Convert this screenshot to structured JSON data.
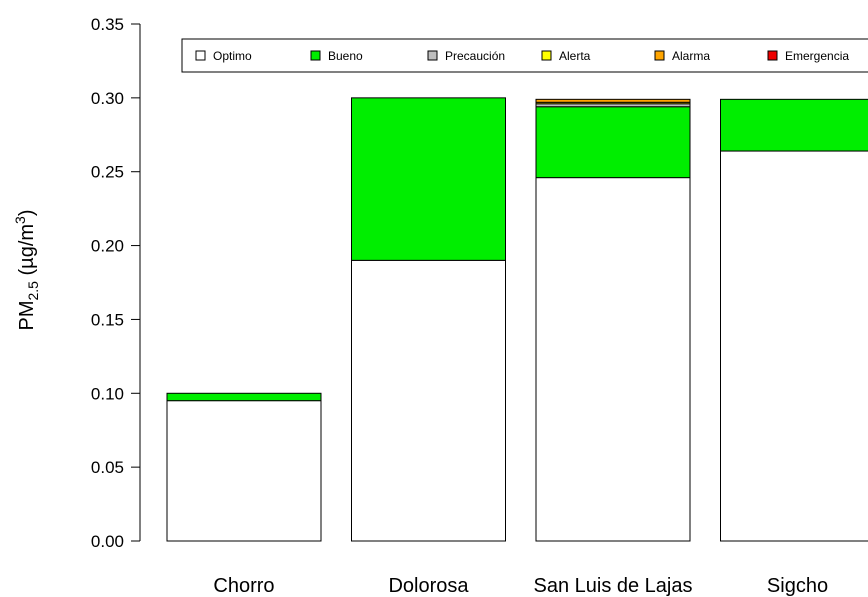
{
  "chart_data": {
    "type": "bar",
    "stacked": true,
    "ylabel": {
      "main": "PM",
      "sub": "2.5",
      "units_open": " (µg/m",
      "units_sup": "3",
      "units_close": ")"
    },
    "ylim": [
      0,
      0.35
    ],
    "yticks": [
      "0.00",
      "0.05",
      "0.10",
      "0.15",
      "0.20",
      "0.25",
      "0.30",
      "0.35"
    ],
    "grid": false,
    "legend_position": "top",
    "categories": [
      "Chorro",
      "Dolorosa",
      "San Luis de Lajas",
      "Sigcho"
    ],
    "series": [
      {
        "name": "Optimo",
        "color": "#ffffff",
        "values": [
          0.095,
          0.19,
          0.246,
          0.264
        ]
      },
      {
        "name": "Bueno",
        "color": "#00ee00",
        "values": [
          0.005,
          0.11,
          0.048,
          0.035
        ]
      },
      {
        "name": "Precaución",
        "color": "#bebebe",
        "values": [
          0.0,
          0.0,
          0.002,
          0.0
        ]
      },
      {
        "name": "Alerta",
        "color": "#ffff00",
        "values": [
          0.0,
          0.0,
          0.001,
          0.0
        ]
      },
      {
        "name": "Alarma",
        "color": "#ffa500",
        "values": [
          0.0,
          0.0,
          0.002,
          0.0
        ]
      },
      {
        "name": "Emergencia",
        "color": "#ee0000",
        "values": [
          0.0,
          0.0,
          0.0,
          0.0
        ]
      }
    ]
  }
}
